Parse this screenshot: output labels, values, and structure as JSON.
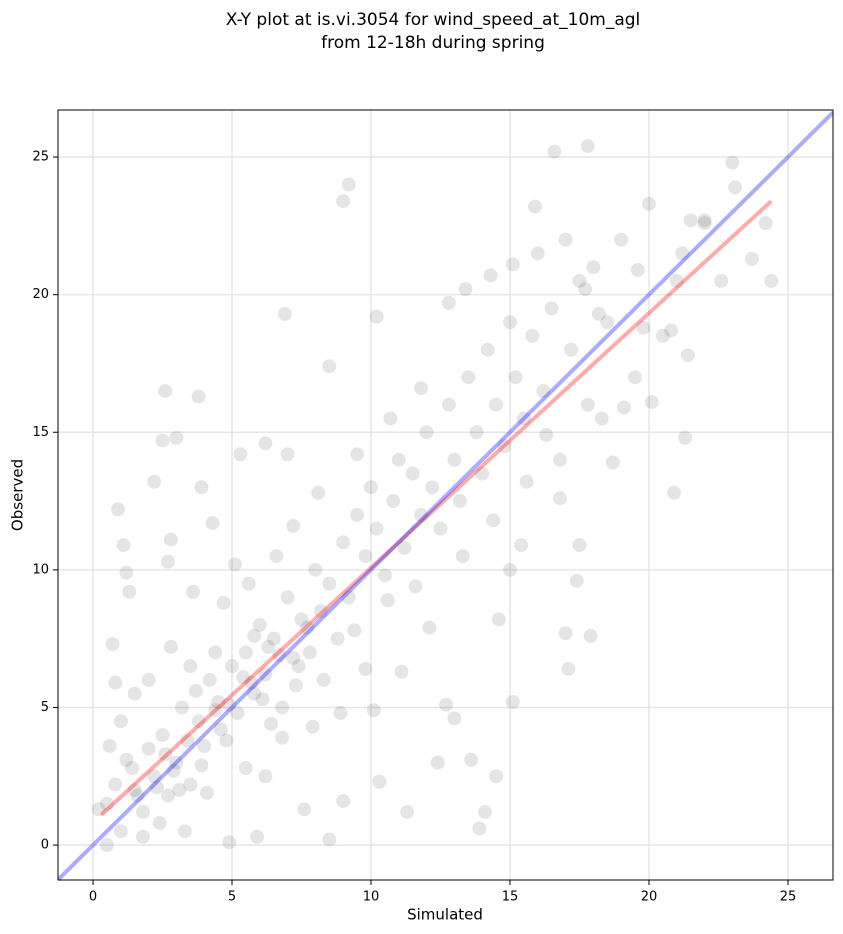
{
  "chart_data": {
    "type": "scatter",
    "title": [
      "X-Y plot at is.vi.3054 for wind_speed_at_10m_agl",
      "from 12-18h during spring"
    ],
    "x_label": "Simulated",
    "y_label": "Observed",
    "xlim": [
      -1.26,
      26.62
    ],
    "ylim": [
      -1.27,
      26.71
    ],
    "xticks": [
      0,
      5,
      10,
      15,
      20,
      25
    ],
    "yticks": [
      0,
      5,
      10,
      15,
      20,
      25
    ],
    "grid": true,
    "color": "#000000",
    "x": [
      0.5,
      0.8,
      1.0,
      1.2,
      1.5,
      1.8,
      2.0,
      2.2,
      2.5,
      2.7,
      3.0,
      3.2,
      3.5,
      3.8,
      4.0,
      4.2,
      4.5,
      4.8,
      5.0,
      5.2,
      5.5,
      5.8,
      6.0,
      6.2,
      6.5,
      6.8,
      7.0,
      7.2,
      7.5,
      7.8,
      8.0,
      8.2,
      8.5,
      8.8,
      9.0,
      9.2,
      9.5,
      9.8,
      10.0,
      10.2,
      10.5,
      10.8,
      11.0,
      11.2,
      11.5,
      11.8,
      12.0,
      12.2,
      12.5,
      12.8,
      13.0,
      13.2,
      13.5,
      13.8,
      14.0,
      14.2,
      14.5,
      14.8,
      15.0,
      15.2,
      15.5,
      15.8,
      16.0,
      16.2,
      16.5,
      16.8,
      17.0,
      17.2,
      17.5,
      17.8,
      18.0,
      18.5,
      19.0,
      19.5,
      20.0,
      20.5,
      21.0,
      21.5,
      22.0,
      23.0,
      23.1,
      24.2,
      24.4,
      23.7,
      20.9,
      21.3,
      16.6,
      17.8,
      9.2,
      9.0,
      6.9,
      3.8,
      2.6,
      2.5,
      3.0,
      0.9,
      1.1,
      2.2,
      10.2,
      8.5,
      15.9,
      14.3,
      15.1,
      22.0,
      17.0,
      17.9,
      17.1,
      15.1,
      14.5,
      13.9,
      14.1,
      11.3,
      12.4,
      13.6,
      8.5,
      10.3,
      9.0,
      4.9,
      1.8,
      0.5,
      0.2,
      0.6,
      0.8,
      0.7,
      1.3,
      1.2,
      2.8,
      2.7,
      3.9,
      4.3,
      5.3,
      6.2,
      7.0,
      12.8,
      13.4,
      17.7,
      18.2,
      19.6,
      20.8,
      20.1,
      21.4,
      18.7,
      16.8,
      15.4,
      15.0,
      17.5,
      17.4,
      12.7,
      13.0,
      10.1,
      11.1,
      9.8,
      12.1,
      14.6,
      6.2,
      7.6,
      5.9,
      3.3,
      2.4,
      4.1,
      5.5,
      6.8,
      7.9,
      8.9,
      3.5,
      2.8,
      1.5,
      4.7,
      5.6,
      3.6,
      4.4,
      6.4,
      7.3,
      8.3,
      9.4,
      10.6,
      11.6,
      13.3,
      14.4,
      15.6,
      16.3,
      18.3,
      19.1,
      19.8,
      22.6,
      21.2,
      11.8,
      10.7,
      9.5,
      8.1,
      7.2,
      6.6,
      5.1,
      2.0,
      1.0,
      3.1,
      4.6,
      5.7,
      6.7,
      7.7,
      1.4,
      2.3,
      3.4,
      4.4,
      5.4,
      6.3,
      7.4,
      2.9,
      3.7,
      4.9,
      5.8,
      6.1,
      1.6,
      2.6,
      3.9
    ],
    "values": [
      1.5,
      2.2,
      0.5,
      3.1,
      2.0,
      1.2,
      3.5,
      2.5,
      4.0,
      1.8,
      3.0,
      5.0,
      2.2,
      4.5,
      3.6,
      6.0,
      5.2,
      3.8,
      6.5,
      4.8,
      7.0,
      5.5,
      8.0,
      6.2,
      7.5,
      5.0,
      9.0,
      6.8,
      8.2,
      7.0,
      10.0,
      8.5,
      9.5,
      7.5,
      11.0,
      9.0,
      12.0,
      10.5,
      13.0,
      11.5,
      9.8,
      12.5,
      14.0,
      10.8,
      13.5,
      12.0,
      15.0,
      13.0,
      11.5,
      16.0,
      14.0,
      12.5,
      17.0,
      15.0,
      13.5,
      18.0,
      16.0,
      14.5,
      19.0,
      17.0,
      15.5,
      18.5,
      21.5,
      16.5,
      19.5,
      14.0,
      22.0,
      18.0,
      20.5,
      16.0,
      21.0,
      19.0,
      22.0,
      17.0,
      23.3,
      18.5,
      20.5,
      22.7,
      22.7,
      24.8,
      23.9,
      22.6,
      20.5,
      21.3,
      12.8,
      14.8,
      25.2,
      25.4,
      24.0,
      23.4,
      19.3,
      16.3,
      16.5,
      14.7,
      14.8,
      12.2,
      10.9,
      13.2,
      19.2,
      17.4,
      23.2,
      20.7,
      21.1,
      22.6,
      7.7,
      7.6,
      6.4,
      5.2,
      2.5,
      0.6,
      1.2,
      1.2,
      3.0,
      3.1,
      0.2,
      2.3,
      1.6,
      0.1,
      0.3,
      0.0,
      1.3,
      3.6,
      5.9,
      7.3,
      9.2,
      9.9,
      11.1,
      10.3,
      13.0,
      11.7,
      14.2,
      14.6,
      14.2,
      19.7,
      20.2,
      20.2,
      19.3,
      20.9,
      18.7,
      16.1,
      17.8,
      13.9,
      12.6,
      10.9,
      10.0,
      10.9,
      9.6,
      5.1,
      4.6,
      4.9,
      6.3,
      6.4,
      7.9,
      8.2,
      2.5,
      1.3,
      0.3,
      0.5,
      0.8,
      1.9,
      2.8,
      3.9,
      4.3,
      4.8,
      6.5,
      7.2,
      5.5,
      8.8,
      9.5,
      9.2,
      7.0,
      4.4,
      5.8,
      6.0,
      7.8,
      8.9,
      9.4,
      10.5,
      11.8,
      13.2,
      14.9,
      15.5,
      15.9,
      18.8,
      20.5,
      21.5,
      16.6,
      15.5,
      14.2,
      12.8,
      11.6,
      10.5,
      10.2,
      6.0,
      4.5,
      2.0,
      4.2,
      5.9,
      6.9,
      7.9,
      2.8,
      2.1,
      3.8,
      4.9,
      6.1,
      7.2,
      6.5,
      2.7,
      5.6,
      5.1,
      7.6,
      5.3,
      1.8,
      3.3,
      2.9
    ],
    "lines": [
      {
        "color": "#ff0000",
        "x": [
          0.3,
          24.4
        ],
        "values": [
          1.1,
          23.4
        ]
      },
      {
        "color": "#0000ff",
        "x": [
          -1.26,
          26.62
        ],
        "values": [
          -1.26,
          26.62
        ]
      }
    ]
  }
}
